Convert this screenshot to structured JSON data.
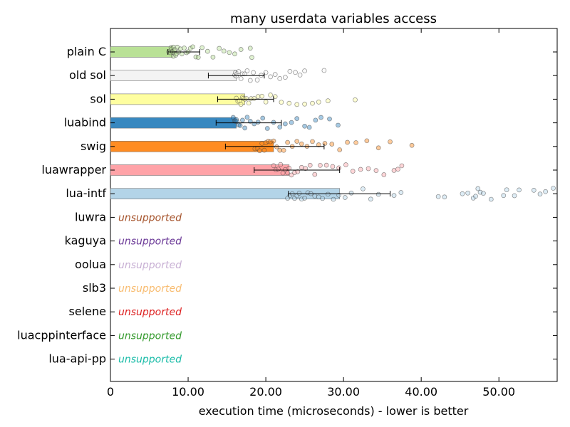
{
  "chart_data": {
    "type": "bar",
    "orientation": "horizontal",
    "title": "many userdata variables access",
    "xlabel": "execution time (microseconds) - lower is better",
    "ylabel": "",
    "xlim": [
      0,
      57.5
    ],
    "xticks": [
      0,
      10,
      20,
      30,
      40,
      50
    ],
    "xtick_labels": [
      "0",
      "10.00",
      "20.00",
      "30.00",
      "40.00",
      "50.00"
    ],
    "grid": false,
    "legend": "none",
    "categories": [
      "plain C",
      "old sol",
      "sol",
      "luabind",
      "swig",
      "luawrapper",
      "lua-intf",
      "luwra",
      "kaguya",
      "oolua",
      "slb3",
      "selene",
      "luacppinterface",
      "lua-api-pp"
    ],
    "values": [
      8.0,
      16.2,
      17.3,
      16.2,
      21.0,
      23.0,
      29.5,
      null,
      null,
      null,
      null,
      null,
      null,
      null
    ],
    "error_low": [
      7.4,
      12.6,
      13.8,
      13.6,
      14.8,
      18.5,
      22.9,
      null,
      null,
      null,
      null,
      null,
      null,
      null
    ],
    "error_high": [
      11.5,
      19.8,
      21.0,
      22.0,
      27.5,
      29.5,
      36.0,
      null,
      null,
      null,
      null,
      null,
      null,
      null
    ],
    "samples": [
      [
        7.5,
        7.7,
        7.8,
        7.9,
        8.0,
        8.0,
        8.1,
        8.1,
        8.2,
        8.2,
        8.3,
        8.4,
        8.5,
        8.6,
        8.8,
        9.0,
        9.2,
        9.5,
        9.8,
        10.0,
        10.3,
        10.6,
        11.0,
        11.3,
        11.8,
        12.5,
        13.2,
        14.0,
        14.6,
        15.3,
        16.0,
        16.8,
        18.0,
        18.2
      ],
      [
        16.0,
        16.1,
        16.2,
        16.3,
        16.5,
        16.8,
        17.0,
        17.3,
        17.6,
        18.0,
        18.4,
        18.9,
        19.4,
        20.0,
        20.6,
        21.2,
        21.8,
        22.5,
        23.1,
        23.8,
        24.4,
        25.0,
        27.5
      ],
      [
        16.2,
        16.4,
        16.6,
        16.8,
        17.0,
        17.1,
        17.3,
        17.5,
        17.8,
        18.1,
        18.5,
        19.0,
        19.5,
        20.0,
        20.6,
        21.2,
        22.0,
        23.0,
        24.0,
        25.0,
        26.0,
        26.8,
        28.0,
        31.5
      ],
      [
        15.8,
        16.0,
        16.1,
        16.2,
        16.3,
        16.5,
        16.7,
        17.0,
        17.3,
        17.6,
        18.0,
        18.5,
        19.0,
        19.6,
        20.2,
        21.0,
        21.8,
        22.5,
        23.3,
        24.0,
        25.0,
        25.6,
        26.4,
        27.1,
        28.2,
        29.3
      ],
      [
        18.6,
        18.9,
        19.2,
        19.5,
        19.8,
        20.0,
        20.3,
        20.6,
        21.0,
        21.4,
        21.8,
        22.3,
        22.8,
        23.4,
        24.0,
        24.6,
        25.3,
        26.0,
        26.8,
        27.6,
        28.5,
        29.5,
        30.5,
        31.6,
        33.0,
        34.5,
        36.0,
        38.8
      ],
      [
        21.0,
        21.3,
        21.6,
        21.9,
        22.2,
        22.5,
        22.8,
        23.0,
        23.3,
        23.7,
        24.1,
        24.6,
        25.1,
        25.7,
        26.3,
        27.0,
        27.8,
        28.6,
        29.4,
        30.3,
        31.2,
        32.2,
        33.2,
        34.2,
        35.2,
        36.5,
        37.0,
        37.5
      ],
      [
        22.8,
        23.1,
        23.4,
        23.7,
        24.0,
        24.3,
        24.6,
        25.0,
        25.4,
        25.8,
        26.3,
        26.8,
        27.3,
        28.0,
        28.7,
        29.4,
        30.2,
        31.0,
        32.5,
        33.5,
        34.5,
        36.5,
        37.4,
        42.2,
        43.0,
        45.3,
        46.0,
        46.7,
        47.0,
        47.3,
        47.6,
        48.0,
        49.0,
        50.6,
        51.0,
        52.0,
        52.6,
        54.5,
        55.3,
        56.0,
        57.0
      ]
    ],
    "unsupported_label": "unsupported",
    "colors": [
      "#b9e196",
      "#f3f3f3",
      "#fefea0",
      "#3888c0",
      "#ff8c22",
      "#ffa3a8",
      "#b3d4e8",
      "#a5522a",
      "#6b3997",
      "#c8b0d4",
      "#f8bc70",
      "#dd1f1f",
      "#339a2c",
      "#18bba7"
    ]
  }
}
